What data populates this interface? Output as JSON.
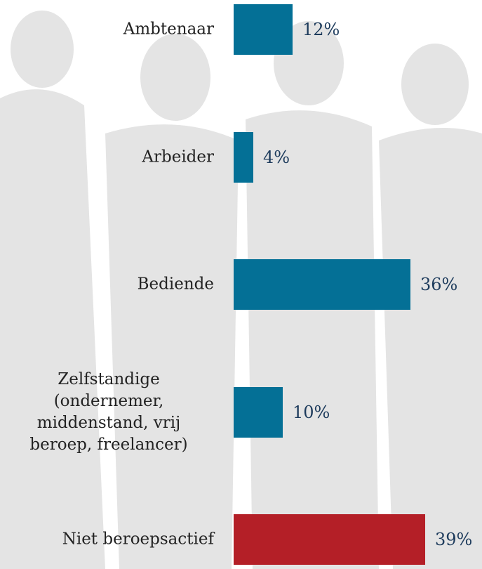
{
  "chart_data": {
    "type": "bar",
    "orientation": "horizontal",
    "categories": [
      "Ambtenaar",
      "Arbeider",
      "Bediende",
      "Zelfstandige (ondernemer, middenstand, vrij beroep, freelancer)",
      "Niet beroepsactief"
    ],
    "values": [
      12,
      4,
      36,
      10,
      39
    ],
    "value_labels": [
      "12%",
      "4%",
      "36%",
      "10%",
      "39%"
    ],
    "colors": [
      "#047096",
      "#047096",
      "#047096",
      "#047096",
      "#b41f27"
    ]
  }
}
